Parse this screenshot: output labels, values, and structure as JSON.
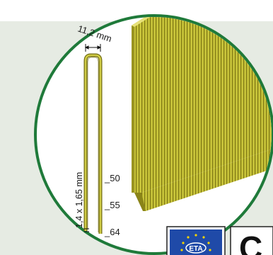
{
  "diagram": {
    "width_label": "11,2 mm",
    "wire_label": "1,4 x 1,65 mm",
    "length_labels": [
      "_50",
      "_55",
      "_64"
    ]
  },
  "badges": {
    "eta_text": "ETA",
    "ce_text": "C"
  },
  "colors": {
    "backdrop": "#e6ebe3",
    "circle_fill": "#ffffff",
    "circle_border": "#1f7a3a",
    "staple": "#c3c23a",
    "staple_dark": "#6f6a10",
    "eu_blue": "#1f4aa8",
    "eu_star": "#f5d400"
  }
}
